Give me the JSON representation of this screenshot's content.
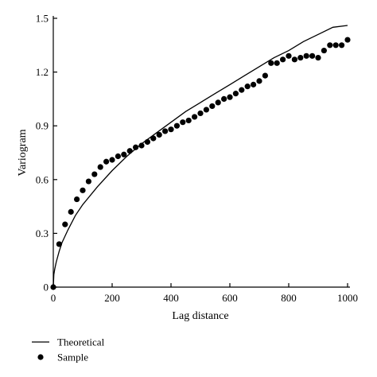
{
  "chart_data": {
    "type": "scatter",
    "xlabel": "Lag distance",
    "ylabel": "Variogram",
    "xlim": [
      0,
      1000
    ],
    "ylim": [
      0,
      1.5
    ],
    "xticks": [
      0,
      200,
      400,
      600,
      800,
      1000
    ],
    "xtick_labels": [
      "0",
      "200",
      "400",
      "600",
      "800",
      "1000"
    ],
    "yticks": [
      0,
      0.3,
      0.6,
      0.9,
      1.2,
      1.5
    ],
    "ytick_labels": [
      "0",
      "0.3",
      "0.6",
      "0.9",
      "1.2",
      "1.5"
    ],
    "grid": false,
    "legend_position": "bottom-left",
    "series": [
      {
        "name": "Theoretical",
        "style": "line",
        "color": "#000000",
        "x": [
          0,
          2,
          5,
          10,
          20,
          30,
          50,
          75,
          100,
          150,
          200,
          250,
          300,
          350,
          400,
          450,
          500,
          550,
          600,
          650,
          700,
          750,
          800,
          850,
          900,
          950,
          1000
        ],
        "y": [
          0,
          0.07,
          0.1,
          0.14,
          0.2,
          0.25,
          0.32,
          0.4,
          0.46,
          0.56,
          0.65,
          0.73,
          0.8,
          0.86,
          0.92,
          0.98,
          1.03,
          1.08,
          1.13,
          1.18,
          1.23,
          1.28,
          1.32,
          1.37,
          1.41,
          1.45,
          1.46
        ]
      },
      {
        "name": "Sample",
        "style": "points",
        "color": "#000000",
        "x": [
          0,
          20,
          40,
          60,
          80,
          100,
          120,
          140,
          160,
          180,
          200,
          220,
          240,
          260,
          280,
          300,
          320,
          340,
          360,
          380,
          400,
          420,
          440,
          460,
          480,
          500,
          520,
          540,
          560,
          580,
          600,
          620,
          640,
          660,
          680,
          700,
          720,
          740,
          760,
          780,
          800,
          820,
          840,
          860,
          880,
          900,
          920,
          940,
          960,
          980,
          1000
        ],
        "y": [
          0,
          0.24,
          0.35,
          0.42,
          0.49,
          0.54,
          0.59,
          0.63,
          0.67,
          0.7,
          0.71,
          0.73,
          0.74,
          0.76,
          0.78,
          0.79,
          0.81,
          0.83,
          0.85,
          0.87,
          0.88,
          0.9,
          0.92,
          0.93,
          0.95,
          0.97,
          0.99,
          1.01,
          1.03,
          1.05,
          1.06,
          1.08,
          1.1,
          1.12,
          1.13,
          1.15,
          1.18,
          1.25,
          1.25,
          1.27,
          1.29,
          1.27,
          1.28,
          1.29,
          1.29,
          1.28,
          1.32,
          1.35,
          1.35,
          1.35,
          1.38
        ]
      }
    ]
  }
}
